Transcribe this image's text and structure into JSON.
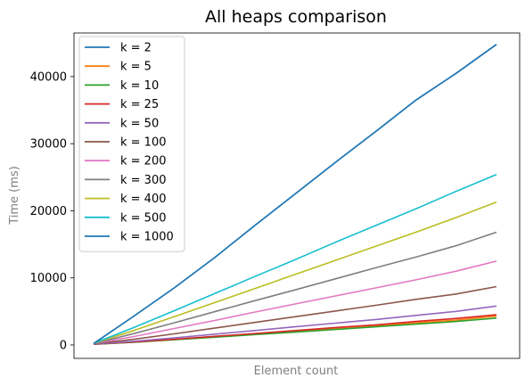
{
  "chart_data": {
    "type": "line",
    "title": "All heaps comparison",
    "xlabel": "Element count",
    "ylabel": "Time (ms)",
    "x": [
      0,
      10,
      20,
      30,
      40,
      50,
      60,
      70,
      80,
      90,
      100
    ],
    "ylim": [
      -2000,
      46500
    ],
    "yticks": [
      0,
      10000,
      20000,
      30000,
      40000
    ],
    "ytick_labels": [
      "0",
      "10000",
      "20000",
      "30000",
      "40000"
    ],
    "xticks_visible": false,
    "grid": false,
    "legend_position": "top-left",
    "series": [
      {
        "name": "k = 2",
        "color": "#1f77b4",
        "values": [
          200,
          4300,
          8500,
          13000,
          17800,
          22500,
          27200,
          31800,
          36500,
          40500,
          44800
        ]
      },
      {
        "name": "k = 5",
        "color": "#ff7f0e",
        "values": [
          100,
          420,
          800,
          1200,
          1600,
          2000,
          2400,
          2800,
          3300,
          3700,
          4300
        ]
      },
      {
        "name": "k = 10",
        "color": "#2ca02c",
        "values": [
          100,
          400,
          780,
          1150,
          1550,
          1900,
          2300,
          2700,
          3100,
          3500,
          4000
        ]
      },
      {
        "name": "k = 25",
        "color": "#d62728",
        "values": [
          100,
          450,
          850,
          1280,
          1700,
          2150,
          2600,
          3000,
          3500,
          3950,
          4500
        ]
      },
      {
        "name": "k = 50",
        "color": "#9467bd",
        "values": [
          100,
          550,
          1050,
          1600,
          2150,
          2700,
          3250,
          3800,
          4400,
          5000,
          5800
        ]
      },
      {
        "name": "k = 100",
        "color": "#8c564b",
        "values": [
          150,
          850,
          1650,
          2500,
          3350,
          4200,
          5050,
          5900,
          6800,
          7600,
          8700
        ]
      },
      {
        "name": "k = 200",
        "color": "#e377c2",
        "values": [
          200,
          1250,
          2450,
          3650,
          4900,
          6100,
          7300,
          8500,
          9700,
          11000,
          12500
        ]
      },
      {
        "name": "k = 300",
        "color": "#7f7f7f",
        "values": [
          200,
          1700,
          3300,
          4950,
          6600,
          8200,
          9850,
          11500,
          13100,
          14800,
          16800
        ]
      },
      {
        "name": "k = 400",
        "color": "#bcbd22",
        "values": [
          250,
          2150,
          4200,
          6300,
          8400,
          10500,
          12600,
          14700,
          16800,
          19000,
          21300
        ]
      },
      {
        "name": "k = 500",
        "color": "#17becf",
        "values": [
          250,
          2600,
          5100,
          7650,
          10200,
          12700,
          15300,
          17800,
          20300,
          22900,
          25400
        ]
      },
      {
        "name": "k = 1000",
        "color": "#1f77b4",
        "values": [
          200,
          4300,
          8500,
          13000,
          17800,
          22500,
          27200,
          31800,
          36500,
          40500,
          44800
        ]
      }
    ]
  }
}
